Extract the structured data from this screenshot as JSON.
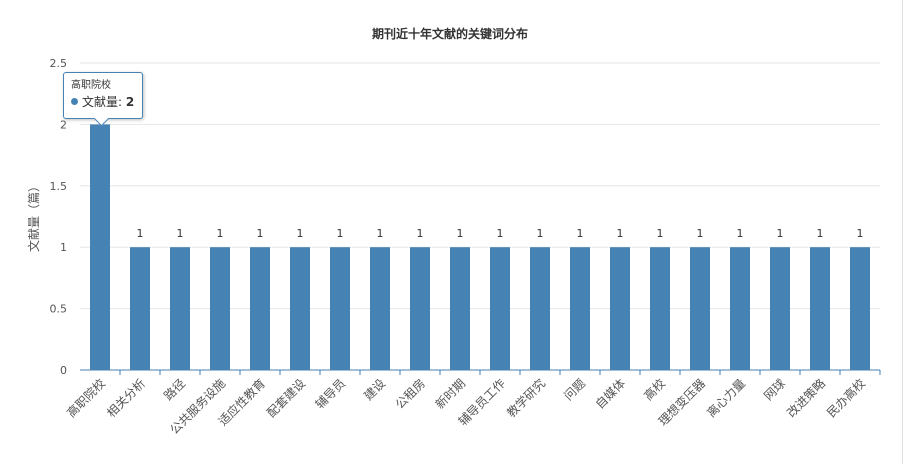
{
  "chart_data": {
    "type": "bar",
    "title": "期刊近十年文献的关键词分布",
    "xlabel": "",
    "ylabel": "文献量（篇）",
    "ylim": [
      0,
      2.5
    ],
    "yticks": [
      "0",
      "0.5",
      "1",
      "1.5",
      "2",
      "2.5"
    ],
    "grid": true,
    "categories": [
      "高职院校",
      "相关分析",
      "路径",
      "公共服务设施",
      "适应性教育",
      "配套建设",
      "辅导员",
      "建设",
      "公租房",
      "新时期",
      "辅导员工作",
      "教学研究",
      "问题",
      "自媒体",
      "高校",
      "理想变压器",
      "离心力量",
      "网球",
      "改进策略",
      "民办高校"
    ],
    "series": [
      {
        "name": "文献量",
        "values": [
          2,
          1,
          1,
          1,
          1,
          1,
          1,
          1,
          1,
          1,
          1,
          1,
          1,
          1,
          1,
          1,
          1,
          1,
          1,
          1
        ],
        "data_labels": [
          "",
          "1",
          "1",
          "1",
          "1",
          "1",
          "1",
          "1",
          "1",
          "1",
          "1",
          "1",
          "1",
          "1",
          "1",
          "1",
          "1",
          "1",
          "1",
          "1"
        ]
      }
    ],
    "bar_color": "#4682b4"
  },
  "tooltip": {
    "category": "高职院校",
    "series_name": "文献量",
    "separator": ":",
    "value": "2"
  }
}
